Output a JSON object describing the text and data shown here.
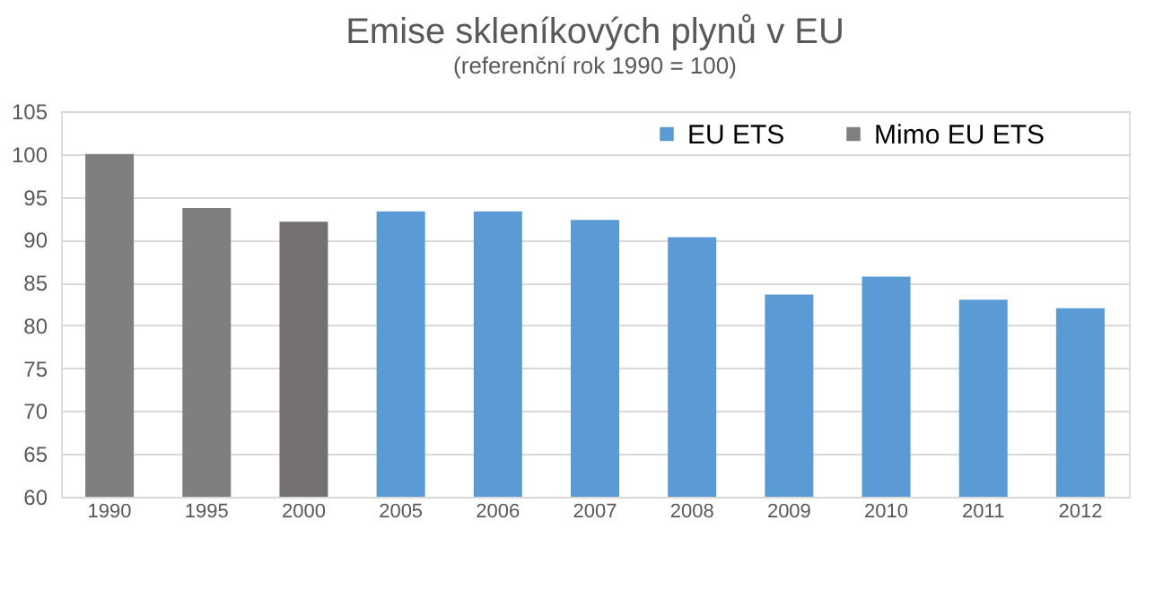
{
  "chart_data": {
    "type": "bar",
    "title": "Emise skleníkových plynů v EU",
    "subtitle": "(referenční rok 1990 = 100)",
    "categories": [
      "1990",
      "1995",
      "2000",
      "2005",
      "2006",
      "2007",
      "2008",
      "2009",
      "2010",
      "2011",
      "2012"
    ],
    "series": [
      {
        "name": "EU ETS",
        "color": "#5b9bd5",
        "values": [
          null,
          null,
          null,
          93.3,
          93.3,
          92.3,
          90.3,
          83.6,
          85.7,
          83.0,
          82.0
        ]
      },
      {
        "name": "Mimo EU ETS",
        "color": "#7f7f7f",
        "colors": [
          "#7f7f7f",
          "#7f7f7f",
          "#767171",
          null,
          null,
          null,
          null,
          null,
          null,
          null,
          null
        ],
        "values": [
          100,
          93.7,
          92.1,
          null,
          null,
          null,
          null,
          null,
          null,
          null,
          null
        ]
      }
    ],
    "ylim": [
      60,
      105
    ],
    "yticks": [
      60,
      65,
      70,
      75,
      80,
      85,
      90,
      95,
      100,
      105
    ],
    "grid": "y",
    "legend": "top right"
  }
}
